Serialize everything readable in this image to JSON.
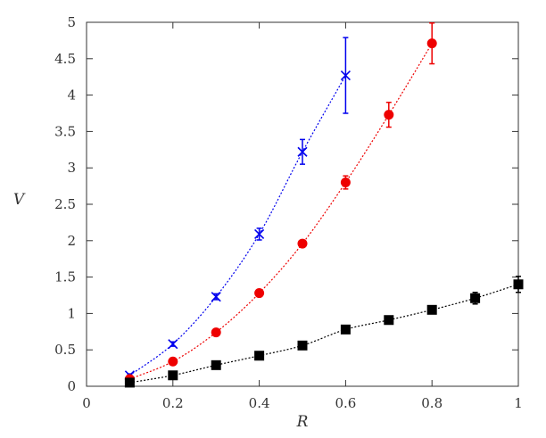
{
  "chart_data": {
    "type": "scatter",
    "title": "",
    "xlabel": "R",
    "ylabel": "V",
    "xlim": [
      0,
      1
    ],
    "ylim": [
      0,
      5
    ],
    "x_ticks": [
      "0",
      "0.2",
      "0.4",
      "0.6",
      "0.8",
      "1"
    ],
    "y_ticks": [
      "0",
      "0.5",
      "1",
      "1.5",
      "2",
      "2.5",
      "3",
      "3.5",
      "4",
      "4.5",
      "5"
    ],
    "grid": false,
    "legend": "none",
    "series": [
      {
        "color": "#0000ee",
        "marker": "cross",
        "line": "dotted",
        "x": [
          0.1,
          0.2,
          0.3,
          0.4,
          0.5,
          0.6
        ],
        "y": [
          0.15,
          0.58,
          1.23,
          2.09,
          3.22,
          4.27
        ],
        "err": [
          0.02,
          0.03,
          0.04,
          0.08,
          0.17,
          0.52
        ]
      },
      {
        "color": "#ee0000",
        "marker": "circle",
        "line": "dotted",
        "x": [
          0.1,
          0.2,
          0.3,
          0.4,
          0.5,
          0.6,
          0.7,
          0.8
        ],
        "y": [
          0.1,
          0.34,
          0.74,
          1.28,
          1.96,
          2.8,
          3.73,
          4.71
        ],
        "err": [
          0.01,
          0.02,
          0.03,
          0.03,
          0.04,
          0.09,
          0.17,
          0.28
        ]
      },
      {
        "color": "#000000",
        "marker": "square",
        "line": "dotted",
        "x": [
          0.1,
          0.2,
          0.3,
          0.4,
          0.5,
          0.6,
          0.7,
          0.8,
          0.9,
          1.0
        ],
        "y": [
          0.05,
          0.15,
          0.29,
          0.42,
          0.56,
          0.78,
          0.91,
          1.05,
          1.21,
          1.4
        ],
        "err": [
          0.01,
          0.02,
          0.02,
          0.03,
          0.03,
          0.03,
          0.04,
          0.05,
          0.08,
          0.11
        ]
      }
    ]
  }
}
